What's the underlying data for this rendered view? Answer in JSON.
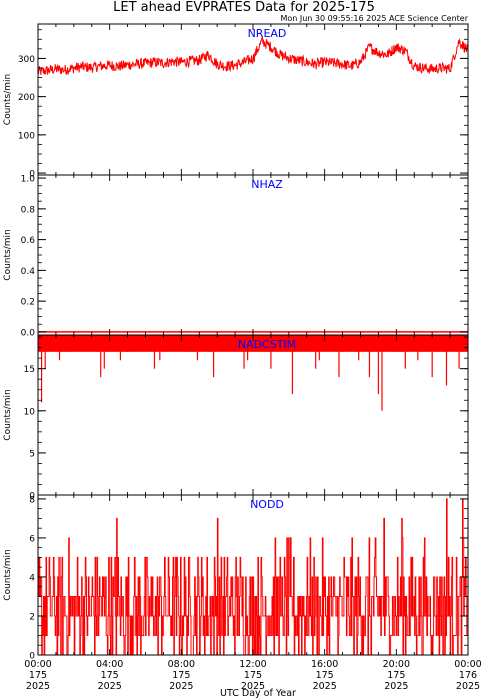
{
  "figure": {
    "title": "LET ahead EVPRATES Data for 2025-175",
    "timestamp": "Mon Jun 30 09:55:16 2025 ACE Science Center",
    "xlabel": "UTC Day of Year",
    "x_ticks": [
      {
        "time": "00:00",
        "day": "175",
        "year": "2025"
      },
      {
        "time": "04:00",
        "day": "175",
        "year": "2025"
      },
      {
        "time": "08:00",
        "day": "175",
        "year": "2025"
      },
      {
        "time": "12:00",
        "day": "175",
        "year": "2025"
      },
      {
        "time": "16:00",
        "day": "175",
        "year": "2025"
      },
      {
        "time": "20:00",
        "day": "175",
        "year": "2025"
      },
      {
        "time": "00:00",
        "day": "176",
        "year": "2025"
      }
    ],
    "colors": {
      "data": "#ff0000",
      "label": "#0000ff",
      "axes": "#000000"
    }
  },
  "chart_data": [
    {
      "type": "line",
      "title": "NREAD",
      "ylabel": "Counts/min",
      "ylim": [
        -5,
        390
      ],
      "yticks": [
        0,
        100,
        200,
        300
      ],
      "xlim_hours": [
        0,
        24
      ],
      "x_hours": [
        0,
        0.5,
        1,
        1.5,
        2,
        2.5,
        3,
        3.5,
        4,
        4.5,
        5,
        5.5,
        6,
        6.5,
        7,
        7.5,
        8,
        8.5,
        9,
        9.5,
        10,
        10.5,
        11,
        11.5,
        12,
        12.5,
        13,
        13.5,
        14,
        14.5,
        15,
        15.5,
        16,
        16.5,
        17,
        17.5,
        18,
        18.5,
        19,
        19.5,
        20,
        20.5,
        21,
        21.5,
        22,
        22.5,
        23,
        23.5,
        24
      ],
      "values": [
        265,
        268,
        272,
        270,
        275,
        278,
        276,
        280,
        282,
        279,
        283,
        285,
        287,
        290,
        288,
        292,
        290,
        293,
        295,
        310,
        285,
        280,
        282,
        290,
        300,
        345,
        330,
        310,
        300,
        295,
        290,
        285,
        290,
        288,
        285,
        280,
        290,
        330,
        315,
        310,
        330,
        320,
        280,
        275,
        272,
        275,
        273,
        345,
        320
      ],
      "noise": 14
    },
    {
      "type": "line",
      "title": "NHAZ",
      "ylabel": "Counts/min",
      "ylim": [
        -0.02,
        1.02
      ],
      "yticks": [
        0.0,
        0.2,
        0.4,
        0.6,
        0.8,
        1.0
      ],
      "xlim_hours": [
        0,
        24
      ],
      "x_hours": [
        0,
        24
      ],
      "values": [
        0,
        0
      ]
    },
    {
      "type": "line",
      "title": "NADCSTIM",
      "ylabel": "Counts/min",
      "ylim": [
        0,
        19
      ],
      "yticks": [
        0,
        5,
        10,
        15
      ],
      "xlim_hours": [
        0,
        24
      ],
      "baseline": 18,
      "band": [
        17,
        19
      ],
      "dips": [
        {
          "hour": 0.2,
          "value": 11
        },
        {
          "hour": 0.4,
          "value": 15
        },
        {
          "hour": 1.2,
          "value": 16
        },
        {
          "hour": 1.8,
          "value": 17
        },
        {
          "hour": 3.5,
          "value": 14
        },
        {
          "hour": 3.7,
          "value": 15
        },
        {
          "hour": 4.6,
          "value": 16
        },
        {
          "hour": 5.0,
          "value": 17
        },
        {
          "hour": 6.5,
          "value": 15
        },
        {
          "hour": 6.8,
          "value": 16
        },
        {
          "hour": 8.2,
          "value": 17
        },
        {
          "hour": 8.9,
          "value": 16
        },
        {
          "hour": 9.8,
          "value": 14
        },
        {
          "hour": 11.5,
          "value": 15
        },
        {
          "hour": 11.7,
          "value": 16
        },
        {
          "hour": 13.0,
          "value": 15
        },
        {
          "hour": 14.2,
          "value": 12
        },
        {
          "hour": 15.5,
          "value": 15
        },
        {
          "hour": 15.7,
          "value": 16
        },
        {
          "hour": 16.8,
          "value": 14
        },
        {
          "hour": 17.9,
          "value": 16
        },
        {
          "hour": 18.5,
          "value": 14
        },
        {
          "hour": 19.0,
          "value": 12
        },
        {
          "hour": 19.2,
          "value": 10
        },
        {
          "hour": 20.0,
          "value": 17
        },
        {
          "hour": 20.5,
          "value": 15
        },
        {
          "hour": 21.2,
          "value": 16
        },
        {
          "hour": 22.0,
          "value": 14
        },
        {
          "hour": 22.8,
          "value": 13
        },
        {
          "hour": 23.5,
          "value": 15
        }
      ]
    },
    {
      "type": "line",
      "title": "NODD",
      "ylabel": "Counts/min",
      "ylim": [
        0,
        8.2
      ],
      "yticks": [
        0,
        2,
        4,
        6,
        8
      ],
      "xlim_hours": [
        0,
        24
      ],
      "typical_range": [
        0,
        6
      ],
      "peaks": [
        {
          "hour": 4.4,
          "value": 7
        },
        {
          "hour": 10.0,
          "value": 7
        },
        {
          "hour": 19.3,
          "value": 7
        },
        {
          "hour": 20.3,
          "value": 7
        },
        {
          "hour": 22.8,
          "value": 8
        },
        {
          "hour": 23.7,
          "value": 8
        }
      ]
    }
  ]
}
